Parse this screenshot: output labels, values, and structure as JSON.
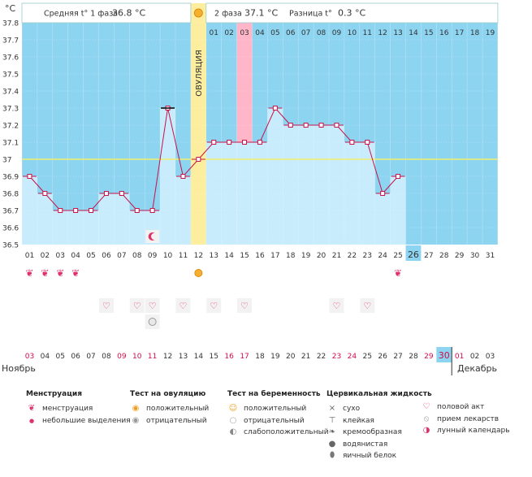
{
  "header": {
    "unit": "°C",
    "avg_phase1_label": "Средняя t° 1 фаза",
    "avg_phase1_value": "36.8 °C",
    "phase2_label": "2 фаза",
    "phase2_value": "37.1 °C",
    "diff_label": "Разница t°",
    "diff_value": "0.3 °C"
  },
  "ovulation_label": "ОВУЛЯЦИЯ",
  "months": {
    "left": "Ноябрь",
    "right": "Декабрь"
  },
  "colors": {
    "sky": "#8dd4f0",
    "bar": "#c8ecfc",
    "line": "#c8124a",
    "ovulation": "#fcee9e",
    "period": "#ffb6c8",
    "coverline": "#f2ef6a"
  },
  "chart_data": {
    "type": "line",
    "title": "Базальная температура",
    "ylabel": "°C",
    "ylim": [
      36.5,
      37.8
    ],
    "yticks": [
      "37.8",
      "37.7",
      "37.6",
      "37.5",
      "37.4",
      "37.3",
      "37.2",
      "37.1",
      "37",
      "36.9",
      "36.8",
      "36.7",
      "36.6",
      "36.5"
    ],
    "coverline": 37.0,
    "ovulation_day": 12,
    "period_day": 15,
    "today_day": 26,
    "cycle_days": [
      "01",
      "02",
      "03",
      "04",
      "05",
      "06",
      "07",
      "08",
      "09",
      "10",
      "11",
      "12",
      "13",
      "14",
      "15",
      "16",
      "17",
      "18",
      "19",
      "20",
      "21",
      "22",
      "23",
      "24",
      "25",
      "26",
      "27",
      "28",
      "29",
      "30",
      "31"
    ],
    "phase2_days": [
      "01",
      "02",
      "03",
      "04",
      "05",
      "06",
      "07",
      "08",
      "09",
      "10",
      "11",
      "12",
      "13",
      "14",
      "15",
      "16",
      "17",
      "18",
      "19"
    ],
    "dates": [
      "03",
      "04",
      "05",
      "06",
      "07",
      "08",
      "09",
      "10",
      "11",
      "12",
      "13",
      "14",
      "15",
      "16",
      "17",
      "18",
      "19",
      "20",
      "21",
      "22",
      "23",
      "24",
      "25",
      "26",
      "27",
      "28",
      "29",
      "30",
      "01",
      "02",
      "03"
    ],
    "red_dates_idx": [
      0,
      6,
      7,
      8,
      13,
      14,
      20,
      21,
      26,
      27,
      28
    ],
    "temperatures": [
      36.9,
      36.8,
      36.7,
      36.7,
      36.7,
      36.8,
      36.8,
      36.7,
      36.7,
      37.3,
      36.9,
      37.0,
      37.1,
      37.1,
      37.1,
      37.1,
      37.3,
      37.2,
      37.2,
      37.2,
      37.2,
      37.1,
      37.1,
      36.8,
      36.9
    ],
    "menstruation_days": [
      1,
      2,
      3,
      4,
      25
    ],
    "ovulation_test_positive_days": [
      12
    ],
    "love_days": [
      6,
      8,
      9,
      11,
      13,
      15,
      21,
      23
    ],
    "medication_days": [
      9
    ],
    "lunar_days": [
      9
    ]
  },
  "legend": {
    "menstruation": {
      "title": "Менструация",
      "items": [
        "менструация",
        "небольшие выделения"
      ]
    },
    "ovulation_test": {
      "title": "Тест на овуляцию",
      "items": [
        "положительный",
        "отрицательный"
      ]
    },
    "pregnancy_test": {
      "title": "Тест на беременность",
      "items": [
        "положительный",
        "отрицательный",
        "слабоположительный"
      ]
    },
    "cervical": {
      "title": "Цервикальная жидкость",
      "items": [
        "сухо",
        "клейкая",
        "кремообразная",
        "водянистая",
        "яичный белок"
      ]
    },
    "other": {
      "items": [
        "половой акт",
        "прием лекарств",
        "лунный календарь"
      ]
    }
  }
}
